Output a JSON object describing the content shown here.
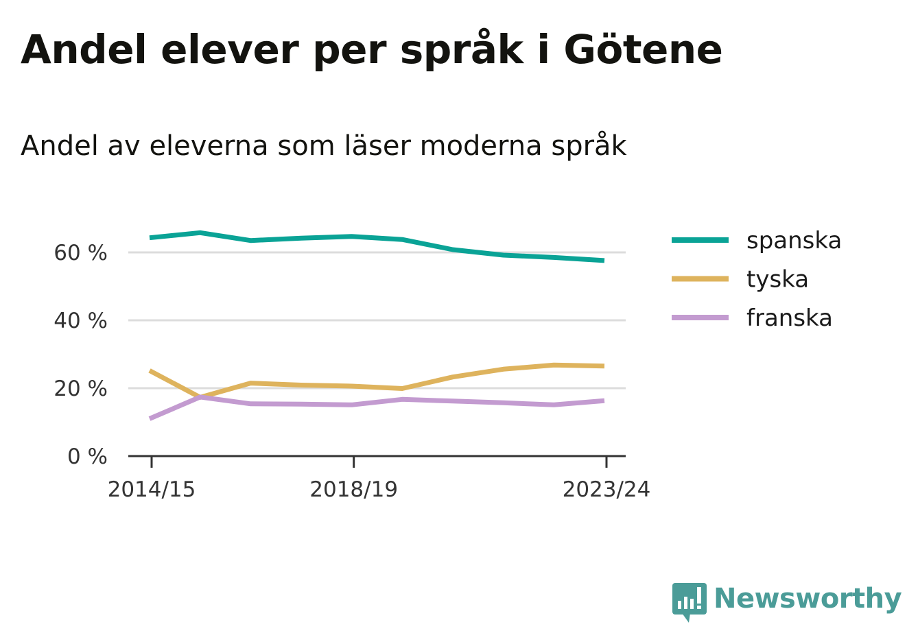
{
  "title": "Andel elever per språk i Götene",
  "subtitle": "Andel av eleverna som läser moderna språk",
  "logo": {
    "text": "Newsworthy",
    "color": "#4b9c98"
  },
  "chart_data": {
    "type": "line",
    "title": "Andel elever per språk i Götene",
    "subtitle": "Andel av eleverna som läser moderna språk",
    "xlabel": "",
    "ylabel": "",
    "x": [
      "2014/15",
      "2015/16",
      "2016/17",
      "2017/18",
      "2018/19",
      "2019/20",
      "2020/21",
      "2021/22",
      "2022/23",
      "2023/24"
    ],
    "x_tick_labels": [
      "2014/15",
      "2018/19",
      "2023/24"
    ],
    "ylim": [
      0,
      70
    ],
    "y_ticks": [
      0,
      20,
      40,
      60
    ],
    "y_tick_labels": [
      "0 %",
      "20 %",
      "40 %",
      "60 %"
    ],
    "grid": true,
    "legend_position": "right",
    "series": [
      {
        "name": "spanska",
        "color": "#0aa396",
        "values": [
          64.3,
          65.8,
          63.5,
          64.2,
          64.7,
          63.8,
          60.8,
          59.2,
          58.5,
          57.6
        ]
      },
      {
        "name": "tyska",
        "color": "#deb35d",
        "values": [
          25.2,
          17.3,
          21.5,
          20.9,
          20.6,
          19.9,
          23.3,
          25.6,
          26.8,
          26.5
        ]
      },
      {
        "name": "franska",
        "color": "#c39bd0",
        "values": [
          11.0,
          17.4,
          15.4,
          15.3,
          15.1,
          16.7,
          16.2,
          15.7,
          15.1,
          16.3
        ]
      }
    ]
  }
}
